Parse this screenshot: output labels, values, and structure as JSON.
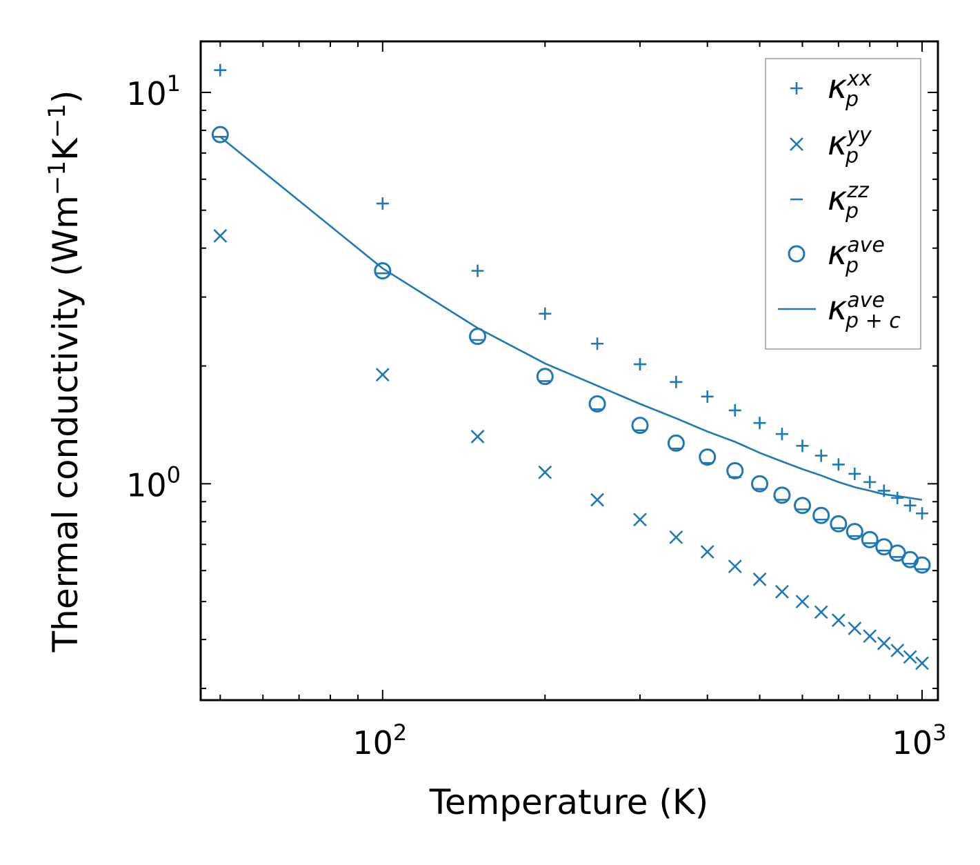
{
  "chart_data": {
    "type": "scatter",
    "xscale": "log",
    "yscale": "log",
    "xlim": [
      46,
      1070
    ],
    "ylim": [
      0.28,
      13.5
    ],
    "xlabel": "Temperature (K)",
    "ylabel": {
      "main": "Thermal conductivity (Wm",
      "exp1": "−1",
      "mid": "K",
      "exp2": "−1",
      "end": ")"
    },
    "x_ticks": [
      {
        "base": "10",
        "exp": "2",
        "value": 100
      },
      {
        "base": "10",
        "exp": "3",
        "value": 1000
      }
    ],
    "y_ticks": [
      {
        "base": "10",
        "exp": "0",
        "value": 1
      },
      {
        "base": "10",
        "exp": "1",
        "value": 10
      }
    ],
    "color": "#1f77b4",
    "legend_position": "top-right",
    "x": [
      50,
      100,
      150,
      200,
      250,
      300,
      350,
      400,
      450,
      500,
      550,
      600,
      650,
      700,
      750,
      800,
      850,
      900,
      950,
      1000
    ],
    "series": [
      {
        "key": "xx",
        "name": "κ",
        "sub": "p",
        "sup": "xx",
        "marker": "plus",
        "values": [
          11.4,
          5.2,
          3.5,
          2.72,
          2.28,
          2.02,
          1.82,
          1.67,
          1.54,
          1.43,
          1.34,
          1.25,
          1.18,
          1.12,
          1.06,
          1.01,
          0.96,
          0.92,
          0.88,
          0.84
        ]
      },
      {
        "key": "yy",
        "name": "κ",
        "sub": "p",
        "sup": "yy",
        "marker": "x",
        "values": [
          4.3,
          1.9,
          1.32,
          1.07,
          0.91,
          0.81,
          0.73,
          0.67,
          0.615,
          0.57,
          0.53,
          0.5,
          0.47,
          0.448,
          0.427,
          0.408,
          0.391,
          0.375,
          0.361,
          0.348
        ]
      },
      {
        "key": "zz",
        "name": "κ",
        "sub": "p",
        "sup": "zz",
        "marker": "hline",
        "values": [
          7.7,
          3.45,
          2.33,
          1.83,
          1.55,
          1.37,
          1.23,
          1.13,
          1.04,
          0.97,
          0.91,
          0.86,
          0.81,
          0.77,
          0.735,
          0.705,
          0.675,
          0.65,
          0.625,
          0.605
        ]
      },
      {
        "key": "ave",
        "name": "κ",
        "sub": "p",
        "sup": "ave",
        "marker": "circle",
        "values": [
          7.8,
          3.5,
          2.38,
          1.88,
          1.6,
          1.41,
          1.27,
          1.17,
          1.08,
          1.0,
          0.935,
          0.88,
          0.83,
          0.79,
          0.755,
          0.72,
          0.69,
          0.665,
          0.64,
          0.62
        ]
      },
      {
        "key": "ave_pc",
        "name": "κ",
        "sub": "p + c",
        "sup": "ave",
        "marker": "line",
        "values": [
          7.7,
          3.55,
          2.5,
          2.03,
          1.78,
          1.6,
          1.47,
          1.36,
          1.28,
          1.2,
          1.14,
          1.09,
          1.05,
          1.01,
          0.98,
          0.96,
          0.94,
          0.93,
          0.92,
          0.91
        ]
      }
    ]
  }
}
